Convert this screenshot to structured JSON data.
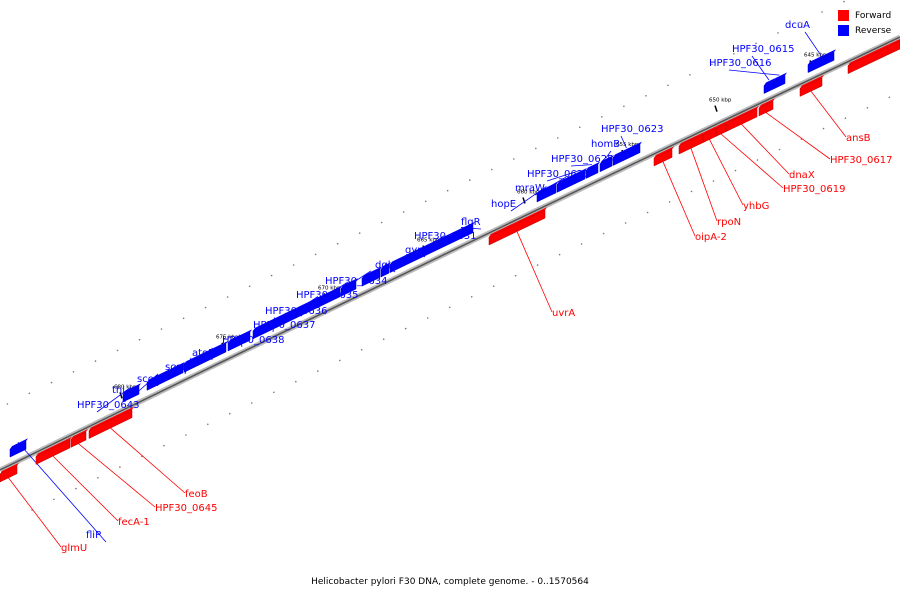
{
  "caption": "Helicobacter pylori F30 DNA, complete genome. - 0..1570564",
  "legend": [
    {
      "label": "Forward",
      "color": "#ff0000"
    },
    {
      "label": "Reverse",
      "color": "#0000ff"
    }
  ],
  "colors": {
    "forward": "#ff0000",
    "reverse": "#0000ff",
    "backbone": "#888888"
  },
  "ticks": [
    {
      "label": "645 kbp",
      "kbp": 645
    },
    {
      "label": "650 kbp",
      "kbp": 650
    },
    {
      "label": "655 kbp",
      "kbp": 655
    },
    {
      "label": "660 kbp",
      "kbp": 660
    },
    {
      "label": "665 kbp",
      "kbp": 665
    },
    {
      "label": "670 kbp",
      "kbp": 670
    },
    {
      "label": "675 kbp",
      "kbp": 675
    },
    {
      "label": "680 kbp",
      "kbp": 680
    }
  ],
  "genes": [
    {
      "label": "dcuA",
      "strand": "reverse"
    },
    {
      "label": "HPF30_0615",
      "strand": "reverse"
    },
    {
      "label": "HPF30_0616",
      "strand": "reverse"
    },
    {
      "label": "HPF30_0623",
      "strand": "reverse"
    },
    {
      "label": "homB",
      "strand": "reverse"
    },
    {
      "label": "HPF30_0625",
      "strand": "reverse"
    },
    {
      "label": "HPF30_0626",
      "strand": "reverse"
    },
    {
      "label": "mraW",
      "strand": "reverse"
    },
    {
      "label": "hopE",
      "strand": "reverse"
    },
    {
      "label": "flgR",
      "strand": "reverse"
    },
    {
      "label": "HPF30_0631",
      "strand": "reverse"
    },
    {
      "label": "gyrA",
      "strand": "reverse"
    },
    {
      "label": "dgkA",
      "strand": "reverse"
    },
    {
      "label": "HPF30_0634",
      "strand": "reverse"
    },
    {
      "label": "HPF30_0635",
      "strand": "reverse"
    },
    {
      "label": "HPF30_0636",
      "strand": "reverse"
    },
    {
      "label": "HPF30_0637",
      "strand": "reverse"
    },
    {
      "label": "HPF30_0638",
      "strand": "reverse"
    },
    {
      "label": "atoE",
      "strand": "reverse"
    },
    {
      "label": "scoB",
      "strand": "reverse"
    },
    {
      "label": "scoA",
      "strand": "reverse"
    },
    {
      "label": "thl",
      "strand": "reverse"
    },
    {
      "label": "HPF30_0643",
      "strand": "reverse"
    },
    {
      "label": "fliP",
      "strand": "reverse"
    },
    {
      "label": "ansB",
      "strand": "forward"
    },
    {
      "label": "HPF30_0617",
      "strand": "forward"
    },
    {
      "label": "dnaX",
      "strand": "forward"
    },
    {
      "label": "HPF30_0619",
      "strand": "forward"
    },
    {
      "label": "yhbG",
      "strand": "forward"
    },
    {
      "label": "rpoN",
      "strand": "forward"
    },
    {
      "label": "oipA-2",
      "strand": "forward"
    },
    {
      "label": "uvrA",
      "strand": "forward"
    },
    {
      "label": "feoB",
      "strand": "forward"
    },
    {
      "label": "HPF30_0645",
      "strand": "forward"
    },
    {
      "label": "fecA-1",
      "strand": "forward"
    },
    {
      "label": "glmU",
      "strand": "forward"
    }
  ]
}
